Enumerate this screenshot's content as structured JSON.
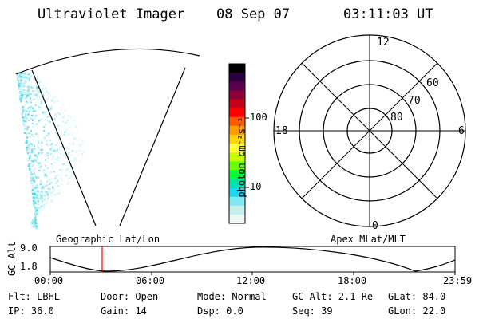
{
  "header": {
    "instrument": "Ultraviolet Imager",
    "date": "08 Sep 07",
    "time": "03:11:03 UT"
  },
  "colorbar": {
    "unit": "photon cm⁻²s⁻¹",
    "ticks": [
      "100",
      "10"
    ],
    "colors": [
      "#000000",
      "#2b003f",
      "#5a0053",
      "#8a0038",
      "#c4001b",
      "#ff0000",
      "#ff5a00",
      "#ff9c00",
      "#ffd400",
      "#ffff3a",
      "#c8ff00",
      "#6aff00",
      "#00ff36",
      "#00e3a8",
      "#22d3f0",
      "#7ee8f2",
      "#c6f0f0",
      "#eef6f6"
    ]
  },
  "polar_plot": {
    "mlt_labels": {
      "top": "12",
      "left": "18",
      "right": "6",
      "bottom": "0"
    },
    "lat_labels": [
      "60",
      "70",
      "80"
    ]
  },
  "timeline": {
    "left_label": "Geographic Lat/Lon",
    "right_label": "Apex MLat/MLT",
    "y_axis_title": "GC Alt",
    "y_ticks": [
      "9.0",
      "1.8"
    ],
    "x_ticks": [
      "00:00",
      "06:00",
      "12:00",
      "18:00",
      "23:59"
    ]
  },
  "info": {
    "flt": "Flt: LBHL",
    "ip": "IP: 36.0",
    "door": "Door: Open",
    "gain": "Gain: 14",
    "mode": "Mode: Normal",
    "dsp": "Dsp:     0.0",
    "gcalt": "GC Alt: 2.1 Re",
    "seq": "Seq: 39",
    "glat": "GLat:  84.0",
    "glon": "GLon:  22.0"
  }
}
